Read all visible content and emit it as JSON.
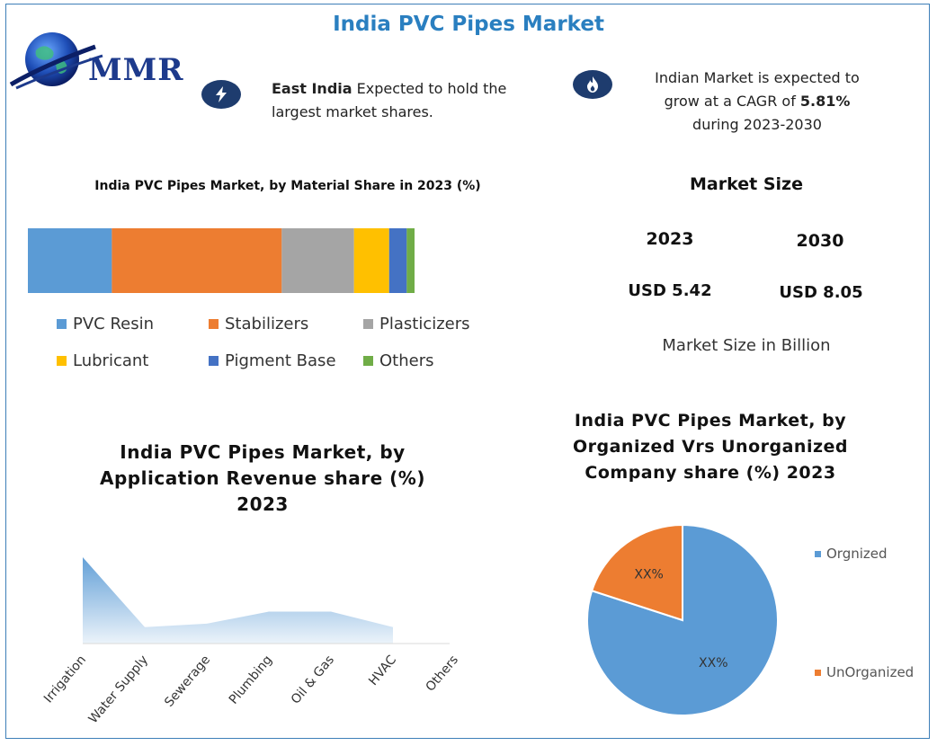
{
  "header": {
    "title": "India PVC Pipes Market",
    "logo_text": "MMR"
  },
  "info": {
    "left": {
      "icon": "lightning-icon",
      "bold": "East India",
      "text_1": " Expected to hold the",
      "text_2": "largest market shares."
    },
    "right": {
      "icon": "flame-icon",
      "line_1": "Indian Market is expected to",
      "line_2_pre": "grow at a CAGR of ",
      "line_2_bold": "5.81%",
      "line_3": "during 2023-2030"
    }
  },
  "material": {
    "title": "India PVC Pipes Market, by Material Share in 2023 (%)"
  },
  "market_size": {
    "title": "Market Size",
    "year_1": "2023",
    "year_2": "2030",
    "value_1": "USD 5.42",
    "value_2": "USD 8.05",
    "note": "Market Size in Billion"
  },
  "application": {
    "title_1": "India PVC Pipes Market, by",
    "title_2": "Application Revenue share (%)",
    "title_3": "2023"
  },
  "organized": {
    "title_1": "India PVC Pipes Market, by",
    "title_2": "Organized Vrs Unorganized",
    "title_3": "Company share (%) 2023"
  },
  "chart_data": [
    {
      "type": "bar",
      "orientation": "horizontal-stacked",
      "title": "India PVC Pipes Market, by Material Share in 2023 (%)",
      "series": [
        {
          "name": "PVC Resin",
          "value": 21.5,
          "color": "#5b9bd5"
        },
        {
          "name": "Stabilizers",
          "value": 43.5,
          "color": "#ed7d31"
        },
        {
          "name": "Plasticizers",
          "value": 18.5,
          "color": "#a5a5a5"
        },
        {
          "name": "Lubricant",
          "value": 9,
          "color": "#ffc000"
        },
        {
          "name": "Pigment Base",
          "value": 4.5,
          "color": "#4472c4"
        },
        {
          "name": "Others",
          "value": 2,
          "color": "#70ad47"
        }
      ],
      "legend": "bottom"
    },
    {
      "type": "area",
      "title": "India PVC Pipes Market, by Application Revenue share (%) 2023",
      "categories": [
        "Irrigation",
        "Water Supply",
        "Sewerage",
        "Plumbing",
        "Oil & Gas",
        "HVAC",
        "Others"
      ],
      "values": [
        100,
        19,
        23,
        37,
        37,
        19,
        null
      ],
      "color": "#5b9bd5",
      "grid": false
    },
    {
      "type": "pie",
      "title": "India PVC Pipes Market, by Organized Vrs Unorganized Company share (%) 2023",
      "slices": [
        {
          "name": "Orgnized",
          "value": 80,
          "label": "XX%",
          "color": "#5b9bd5"
        },
        {
          "name": "UnOrganized",
          "value": 20,
          "label": "XX%",
          "color": "#ed7d31"
        }
      ],
      "legend": "right"
    }
  ]
}
